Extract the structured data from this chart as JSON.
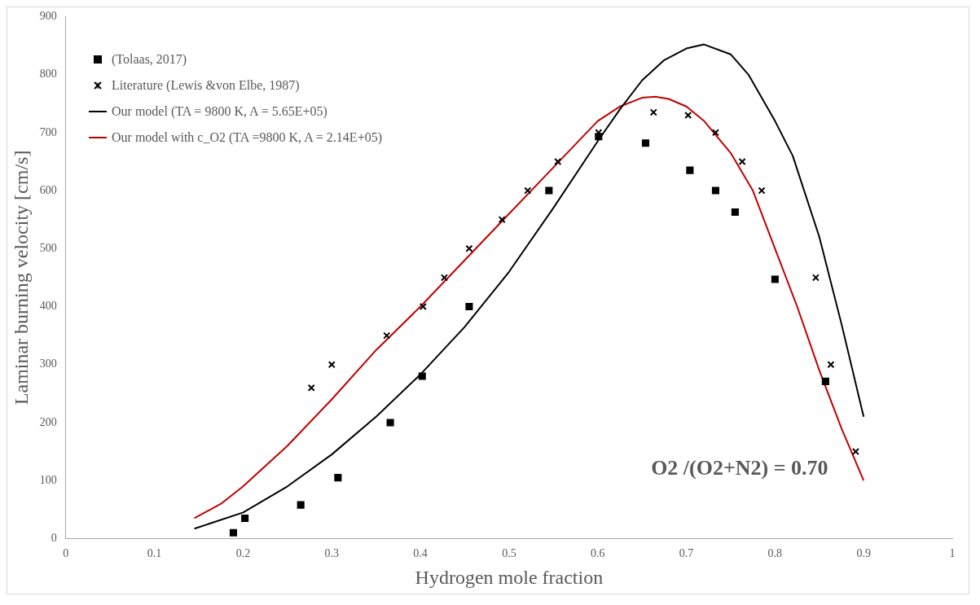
{
  "chart_data": {
    "type": "scatter",
    "xlabel": "Hydrogen mole fraction",
    "ylabel": "Laminar burning velocity [cm/s]",
    "xlim": [
      0,
      1
    ],
    "xticks": [
      0,
      0.1,
      0.2,
      0.3,
      0.4,
      0.5,
      0.6,
      0.7,
      0.8,
      0.9,
      1
    ],
    "ylim": [
      0,
      900
    ],
    "yticks": [
      0,
      100,
      200,
      300,
      400,
      500,
      600,
      700,
      800,
      900
    ],
    "grid": false,
    "legend": "top left",
    "annotations": [
      "O2 /(O2+N2) = 0.70"
    ],
    "series": [
      {
        "name": "(Tolaas, 2017)",
        "type": "scatter",
        "marker": "square",
        "color": "#000000",
        "x": [
          0.189,
          0.202,
          0.265,
          0.307,
          0.366,
          0.402,
          0.455,
          0.545,
          0.601,
          0.654,
          0.704,
          0.733,
          0.755,
          0.8,
          0.857
        ],
        "values": [
          10,
          35,
          58,
          105,
          200,
          280,
          400,
          600,
          693,
          682,
          635,
          600,
          563,
          447,
          271
        ]
      },
      {
        "name": "Literature (Lewis &von Elbe, 1987)",
        "type": "scatter",
        "marker": "cross",
        "color": "#000000",
        "x": [
          0.277,
          0.3,
          0.362,
          0.403,
          0.427,
          0.455,
          0.492,
          0.521,
          0.555,
          0.601,
          0.663,
          0.702,
          0.733,
          0.763,
          0.785,
          0.846,
          0.863,
          0.891
        ],
        "values": [
          260,
          300,
          350,
          400,
          450,
          500,
          550,
          600,
          650,
          700,
          735,
          730,
          700,
          650,
          600,
          450,
          300,
          150
        ]
      },
      {
        "name": "Our model (TA = 9800 K, A = 5.65E+05)",
        "type": "line",
        "marker": "none",
        "color": "#000000",
        "x": [
          0.145,
          0.2,
          0.25,
          0.3,
          0.35,
          0.4,
          0.45,
          0.5,
          0.55,
          0.6,
          0.625,
          0.65,
          0.675,
          0.7,
          0.72,
          0.75,
          0.77,
          0.8,
          0.82,
          0.85,
          0.875,
          0.9
        ],
        "values": [
          17,
          45,
          90,
          145,
          210,
          283,
          365,
          460,
          570,
          685,
          740,
          790,
          825,
          845,
          852,
          835,
          800,
          720,
          660,
          520,
          370,
          210
        ]
      },
      {
        "name": "Our model with c_O2 (TA =9800 K, A = 2.14E+05)",
        "type": "line",
        "marker": "none",
        "color": "#c00000",
        "x": [
          0.145,
          0.175,
          0.2,
          0.25,
          0.3,
          0.35,
          0.4,
          0.45,
          0.5,
          0.55,
          0.6,
          0.625,
          0.65,
          0.665,
          0.68,
          0.7,
          0.72,
          0.75,
          0.775,
          0.8,
          0.825,
          0.85,
          0.875,
          0.9
        ],
        "values": [
          35,
          60,
          90,
          160,
          240,
          325,
          400,
          480,
          560,
          640,
          720,
          745,
          760,
          762,
          758,
          745,
          720,
          665,
          600,
          500,
          400,
          290,
          190,
          100
        ]
      }
    ]
  }
}
